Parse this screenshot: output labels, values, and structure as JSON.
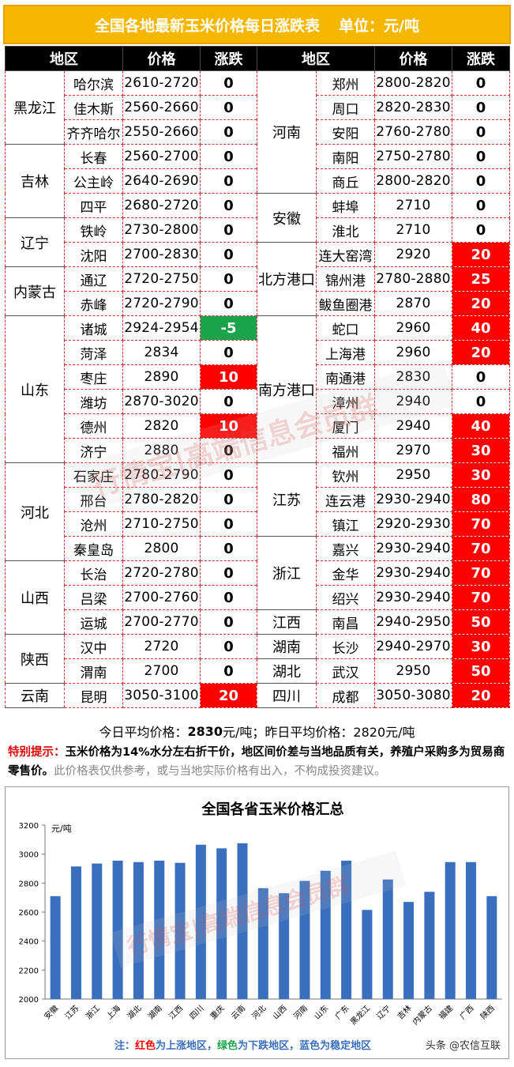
{
  "title": {
    "main": "全国各地最新玉米价格每日涨跌表",
    "unit": "单位：元/吨"
  },
  "headers": [
    "地区",
    "价格",
    "涨跌",
    "地区",
    "价格",
    "涨跌"
  ],
  "left_rows": [
    {
      "region": "黑龙江",
      "span": 3,
      "city": "哈尔滨",
      "price": "2610-2720",
      "change": "0"
    },
    {
      "city": "佳木斯",
      "price": "2560-2660",
      "change": "0"
    },
    {
      "city": "齐齐哈尔",
      "price": "2550-2660",
      "change": "0"
    },
    {
      "region": "吉林",
      "span": 3,
      "city": "长春",
      "price": "2560-2700",
      "change": "0"
    },
    {
      "city": "公主岭",
      "price": "2640-2690",
      "change": "0"
    },
    {
      "city": "四平",
      "price": "2680-2720",
      "change": "0"
    },
    {
      "region": "辽宁",
      "span": 2,
      "city": "铁岭",
      "price": "2730-2800",
      "change": "0"
    },
    {
      "city": "沈阳",
      "price": "2700-2830",
      "change": "0"
    },
    {
      "region": "内蒙古",
      "span": 2,
      "city": "通辽",
      "price": "2720-2750",
      "change": "0"
    },
    {
      "city": "赤峰",
      "price": "2720-2790",
      "change": "0"
    },
    {
      "region": "山东",
      "span": 6,
      "city": "诸城",
      "price": "2924-2954",
      "change": "-5"
    },
    {
      "city": "菏泽",
      "price": "2834",
      "change": "0"
    },
    {
      "city": "枣庄",
      "price": "2890",
      "change": "10"
    },
    {
      "city": "潍坊",
      "price": "2870-3020",
      "change": "0"
    },
    {
      "city": "德州",
      "price": "2820",
      "change": "10"
    },
    {
      "city": "济宁",
      "price": "2880",
      "change": "0"
    },
    {
      "region": "河北",
      "span": 4,
      "city": "石家庄",
      "price": "2780-2790",
      "change": "0"
    },
    {
      "city": "邢台",
      "price": "2780-2820",
      "change": "0"
    },
    {
      "city": "沧州",
      "price": "2710-2750",
      "change": "0"
    },
    {
      "city": "秦皇岛",
      "price": "2800",
      "change": "0"
    },
    {
      "region": "山西",
      "span": 3,
      "city": "长治",
      "price": "2720-2780",
      "change": "0"
    },
    {
      "city": "吕梁",
      "price": "2700-2760",
      "change": "0"
    },
    {
      "city": "运城",
      "price": "2700-2770",
      "change": "0"
    },
    {
      "region": "陕西",
      "span": 2,
      "city": "汉中",
      "price": "2720",
      "change": "0"
    },
    {
      "city": "渭南",
      "price": "2700",
      "change": "0"
    },
    {
      "region": "云南",
      "span": 1,
      "city": "昆明",
      "price": "3050-3100",
      "change": "20"
    }
  ],
  "right_rows": [
    {
      "region": "河南",
      "span": 5,
      "city": "郑州",
      "price": "2800-2820",
      "change": "0"
    },
    {
      "city": "周口",
      "price": "2820-2830",
      "change": "0"
    },
    {
      "city": "安阳",
      "price": "2760-2780",
      "change": "0"
    },
    {
      "city": "南阳",
      "price": "2750-2780",
      "change": "0"
    },
    {
      "city": "商丘",
      "price": "2800-2820",
      "change": "0"
    },
    {
      "region": "安徽",
      "span": 2,
      "city": "蚌埠",
      "price": "2710",
      "change": "0"
    },
    {
      "city": "淮北",
      "price": "2710",
      "change": "0"
    },
    {
      "region": "北方港口",
      "span": 3,
      "city": "连大窑湾",
      "price": "2920",
      "change": "20"
    },
    {
      "city": "锦州港",
      "price": "2780-2880",
      "change": "25"
    },
    {
      "city": "鲅鱼圈港",
      "price": "2870",
      "change": "20"
    },
    {
      "region": "南方港口",
      "span": 6,
      "city": "蛇口",
      "price": "2960",
      "change": "40"
    },
    {
      "city": "上海港",
      "price": "2960",
      "change": "20"
    },
    {
      "city": "南通港",
      "price": "2830",
      "change": "0"
    },
    {
      "city": "漳州",
      "price": "2940",
      "change": "0"
    },
    {
      "city": "厦门",
      "price": "2940",
      "change": "40"
    },
    {
      "city": "福州",
      "price": "2970",
      "change": "30"
    },
    {
      "region": "江苏",
      "span": 3,
      "city": "钦州",
      "price": "2950",
      "change": "30"
    },
    {
      "city": "连云港",
      "price": "2930-2940",
      "change": "80"
    },
    {
      "city": "镇江",
      "price": "2920-2930",
      "change": "70"
    },
    {
      "region": "浙江",
      "span": 3,
      "city": "嘉兴",
      "price": "2930-2940",
      "change": "70"
    },
    {
      "city": "金华",
      "price": "2930-2940",
      "change": "70"
    },
    {
      "city": "绍兴",
      "price": "2930-2940",
      "change": "70"
    },
    {
      "region": "江西",
      "span": 1,
      "city": "南昌",
      "price": "2940-2950",
      "change": "50"
    },
    {
      "region": "湖南",
      "span": 1,
      "city": "长沙",
      "price": "2940-2970",
      "change": "30"
    },
    {
      "region": "湖北",
      "span": 1,
      "city": "武汉",
      "price": "2950",
      "change": "50"
    },
    {
      "region": "四川",
      "span": 1,
      "city": "成都",
      "price": "3050-3080",
      "change": "20"
    }
  ],
  "average": {
    "today_label": "今日平均价格：",
    "today_value": "2830",
    "today_unit": "元/吨；",
    "yesterday": "昨日平均价格：2820元/吨"
  },
  "notice": {
    "label": "特别提示：",
    "main": "玉米价格为14%水分左右折干价，地区间价差与当地品质有关，养殖户采购多为贸易商零售价。",
    "sub": "此价格表仅供参考，或与当地实际价格有出入，不构成投资建议。"
  },
  "watermark": "行情宝|高端信息会员群",
  "colors": {
    "up": "#ff0000",
    "down": "#1aa34a",
    "bar": "#3a6fbd",
    "title_bg": "#f5b700"
  },
  "chart_data": {
    "type": "bar",
    "title": "全国各省玉米价格汇总",
    "ylabel": "元/吨",
    "ylim": [
      2000,
      3200
    ],
    "yticks": [
      2000,
      2200,
      2400,
      2600,
      2800,
      3000,
      3200
    ],
    "categories": [
      "安徽",
      "江苏",
      "浙江",
      "上海",
      "湖北",
      "湖南",
      "江西",
      "四川",
      "重庆",
      "云南",
      "河北",
      "山西",
      "河南",
      "山东",
      "广东",
      "黑龙江",
      "辽宁",
      "吉林",
      "内蒙古",
      "福建",
      "广西",
      "陕西"
    ],
    "values": [
      2710,
      2915,
      2935,
      2955,
      2945,
      2955,
      2940,
      3065,
      3040,
      3075,
      2765,
      2730,
      2815,
      2885,
      2955,
      2615,
      2825,
      2670,
      2740,
      2945,
      2945,
      2710
    ],
    "legend_note": {
      "prefix": "注：",
      "red": "红色",
      "red_text": "为上涨地区，",
      "green": "绿色",
      "green_text": "为下跌地区，",
      "blue": "蓝色",
      "blue_text": "为稳定地区"
    },
    "credit": "头条 @农信互联"
  }
}
